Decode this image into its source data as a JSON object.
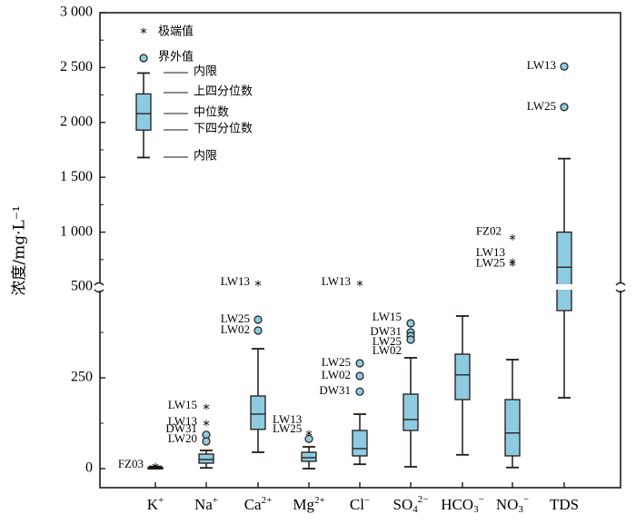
{
  "chart_data": {
    "type": "box",
    "ylabel": "浓度/mg·L⁻¹",
    "y_axis": {
      "broken": true,
      "lower_range": [
        0,
        500
      ],
      "upper_range": [
        500,
        3000
      ],
      "lower_ticks": [
        {
          "value": 0,
          "label": "0"
        },
        {
          "value": 250,
          "label": "250"
        },
        {
          "value": 500,
          "label": "500"
        }
      ],
      "upper_ticks": [
        {
          "value": 1000,
          "label": "1 000"
        },
        {
          "value": 1500,
          "label": "1 500"
        },
        {
          "value": 2000,
          "label": "2 000"
        },
        {
          "value": 2500,
          "label": "2 500"
        },
        {
          "value": 3000,
          "label": "3 000"
        }
      ]
    },
    "legend": {
      "extreme_label": "极端值",
      "outlier_label": "界外值",
      "upper_whisker_label": "内限",
      "q3_label": "上四分位数",
      "median_label": "中位数",
      "q1_label": "下四分位数",
      "lower_whisker_label": "内限",
      "box_upper_fence": 2450,
      "box_q3": 2260,
      "box_median": 2080,
      "box_q1": 1930,
      "box_lower_fence": 1680
    },
    "categories": [
      {
        "id": "K",
        "base": "K",
        "sup": "+",
        "sub": "",
        "sup2": "",
        "lower_fence": 0,
        "q1": 1,
        "median": 2,
        "q3": 4,
        "upper_fence": 6,
        "outliers": [],
        "extremes": [
          {
            "value": 10,
            "label": "FZ03"
          }
        ]
      },
      {
        "id": "Na",
        "base": "Na",
        "sup": "+",
        "sub": "",
        "sup2": "",
        "lower_fence": 2,
        "q1": 15,
        "median": 25,
        "q3": 40,
        "upper_fence": 50,
        "outliers": [
          {
            "value": 93,
            "label": "DW31"
          },
          {
            "value": 75,
            "label": "LW20"
          }
        ],
        "extremes": [
          {
            "value": 172,
            "label": "LW15"
          },
          {
            "value": 128,
            "label": "LW13"
          }
        ]
      },
      {
        "id": "Ca",
        "base": "Ca",
        "sup": "2+",
        "sub": "",
        "sup2": "",
        "lower_fence": 45,
        "q1": 108,
        "median": 150,
        "q3": 200,
        "upper_fence": 330,
        "outliers": [
          {
            "value": 410,
            "label": "LW25"
          },
          {
            "value": 380,
            "label": "LW02"
          }
        ],
        "extremes": [
          {
            "value": 540,
            "label": "LW13"
          }
        ]
      },
      {
        "id": "Mg",
        "base": "Mg",
        "sup": "2+",
        "sub": "",
        "sup2": "",
        "lower_fence": 0,
        "q1": 20,
        "median": 30,
        "q3": 45,
        "upper_fence": 60,
        "outliers": [
          {
            "value": 82,
            "label": ""
          }
        ],
        "extremes": [
          {
            "value": 100,
            "label": ""
          }
        ]
      },
      {
        "id": "Cl",
        "base": "Cl",
        "sup": "−",
        "sub": "",
        "sup2": "",
        "lower_fence": 12,
        "q1": 35,
        "median": 55,
        "q3": 105,
        "upper_fence": 150,
        "outliers": [
          {
            "value": 290,
            "label": "LW25"
          },
          {
            "value": 255,
            "label": "LW02"
          },
          {
            "value": 212,
            "label": "DW31"
          }
        ],
        "extremes": [
          {
            "value": 540,
            "label": "LW13"
          }
        ]
      },
      {
        "id": "SO4",
        "base": "SO",
        "sup": "",
        "sub": "4",
        "sup2": "2−",
        "lower_fence": 5,
        "q1": 105,
        "median": 135,
        "q3": 205,
        "upper_fence": 305,
        "outliers": [
          {
            "value": 400,
            "label": "LW15"
          },
          {
            "value": 375,
            "label": "DW31"
          },
          {
            "value": 365,
            "label": "LW25"
          },
          {
            "value": 355,
            "label": "LW02"
          }
        ],
        "extremes": []
      },
      {
        "id": "HCO3",
        "base": "HCO",
        "sup": "",
        "sub": "3",
        "sup2": "−",
        "lower_fence": 38,
        "q1": 190,
        "median": 258,
        "q3": 315,
        "upper_fence": 420,
        "outliers": [],
        "extremes": []
      },
      {
        "id": "NO3",
        "base": "NO",
        "sup": "",
        "sub": "3",
        "sup2": "−",
        "lower_fence": 3,
        "q1": 35,
        "median": 98,
        "q3": 190,
        "upper_fence": 300,
        "outliers": [],
        "extremes": []
      },
      {
        "id": "TDS",
        "base": "TDS",
        "sup": "",
        "sub": "",
        "sup2": "",
        "lower_fence": 195,
        "q1": 435,
        "median": 680,
        "q3": 1000,
        "upper_fence": 1670,
        "outliers": [
          {
            "value": 2510,
            "label": "LW13"
          },
          {
            "value": 2140,
            "label": "LW25"
          }
        ],
        "extremes": [
          {
            "value": 960,
            "label": "FZ02"
          },
          {
            "value": 740,
            "label": "LW13"
          },
          {
            "value": 720,
            "label": "LW25"
          }
        ]
      }
    ],
    "colors": {
      "box_fill": "#8ccbe0",
      "axis": "#231815"
    }
  }
}
